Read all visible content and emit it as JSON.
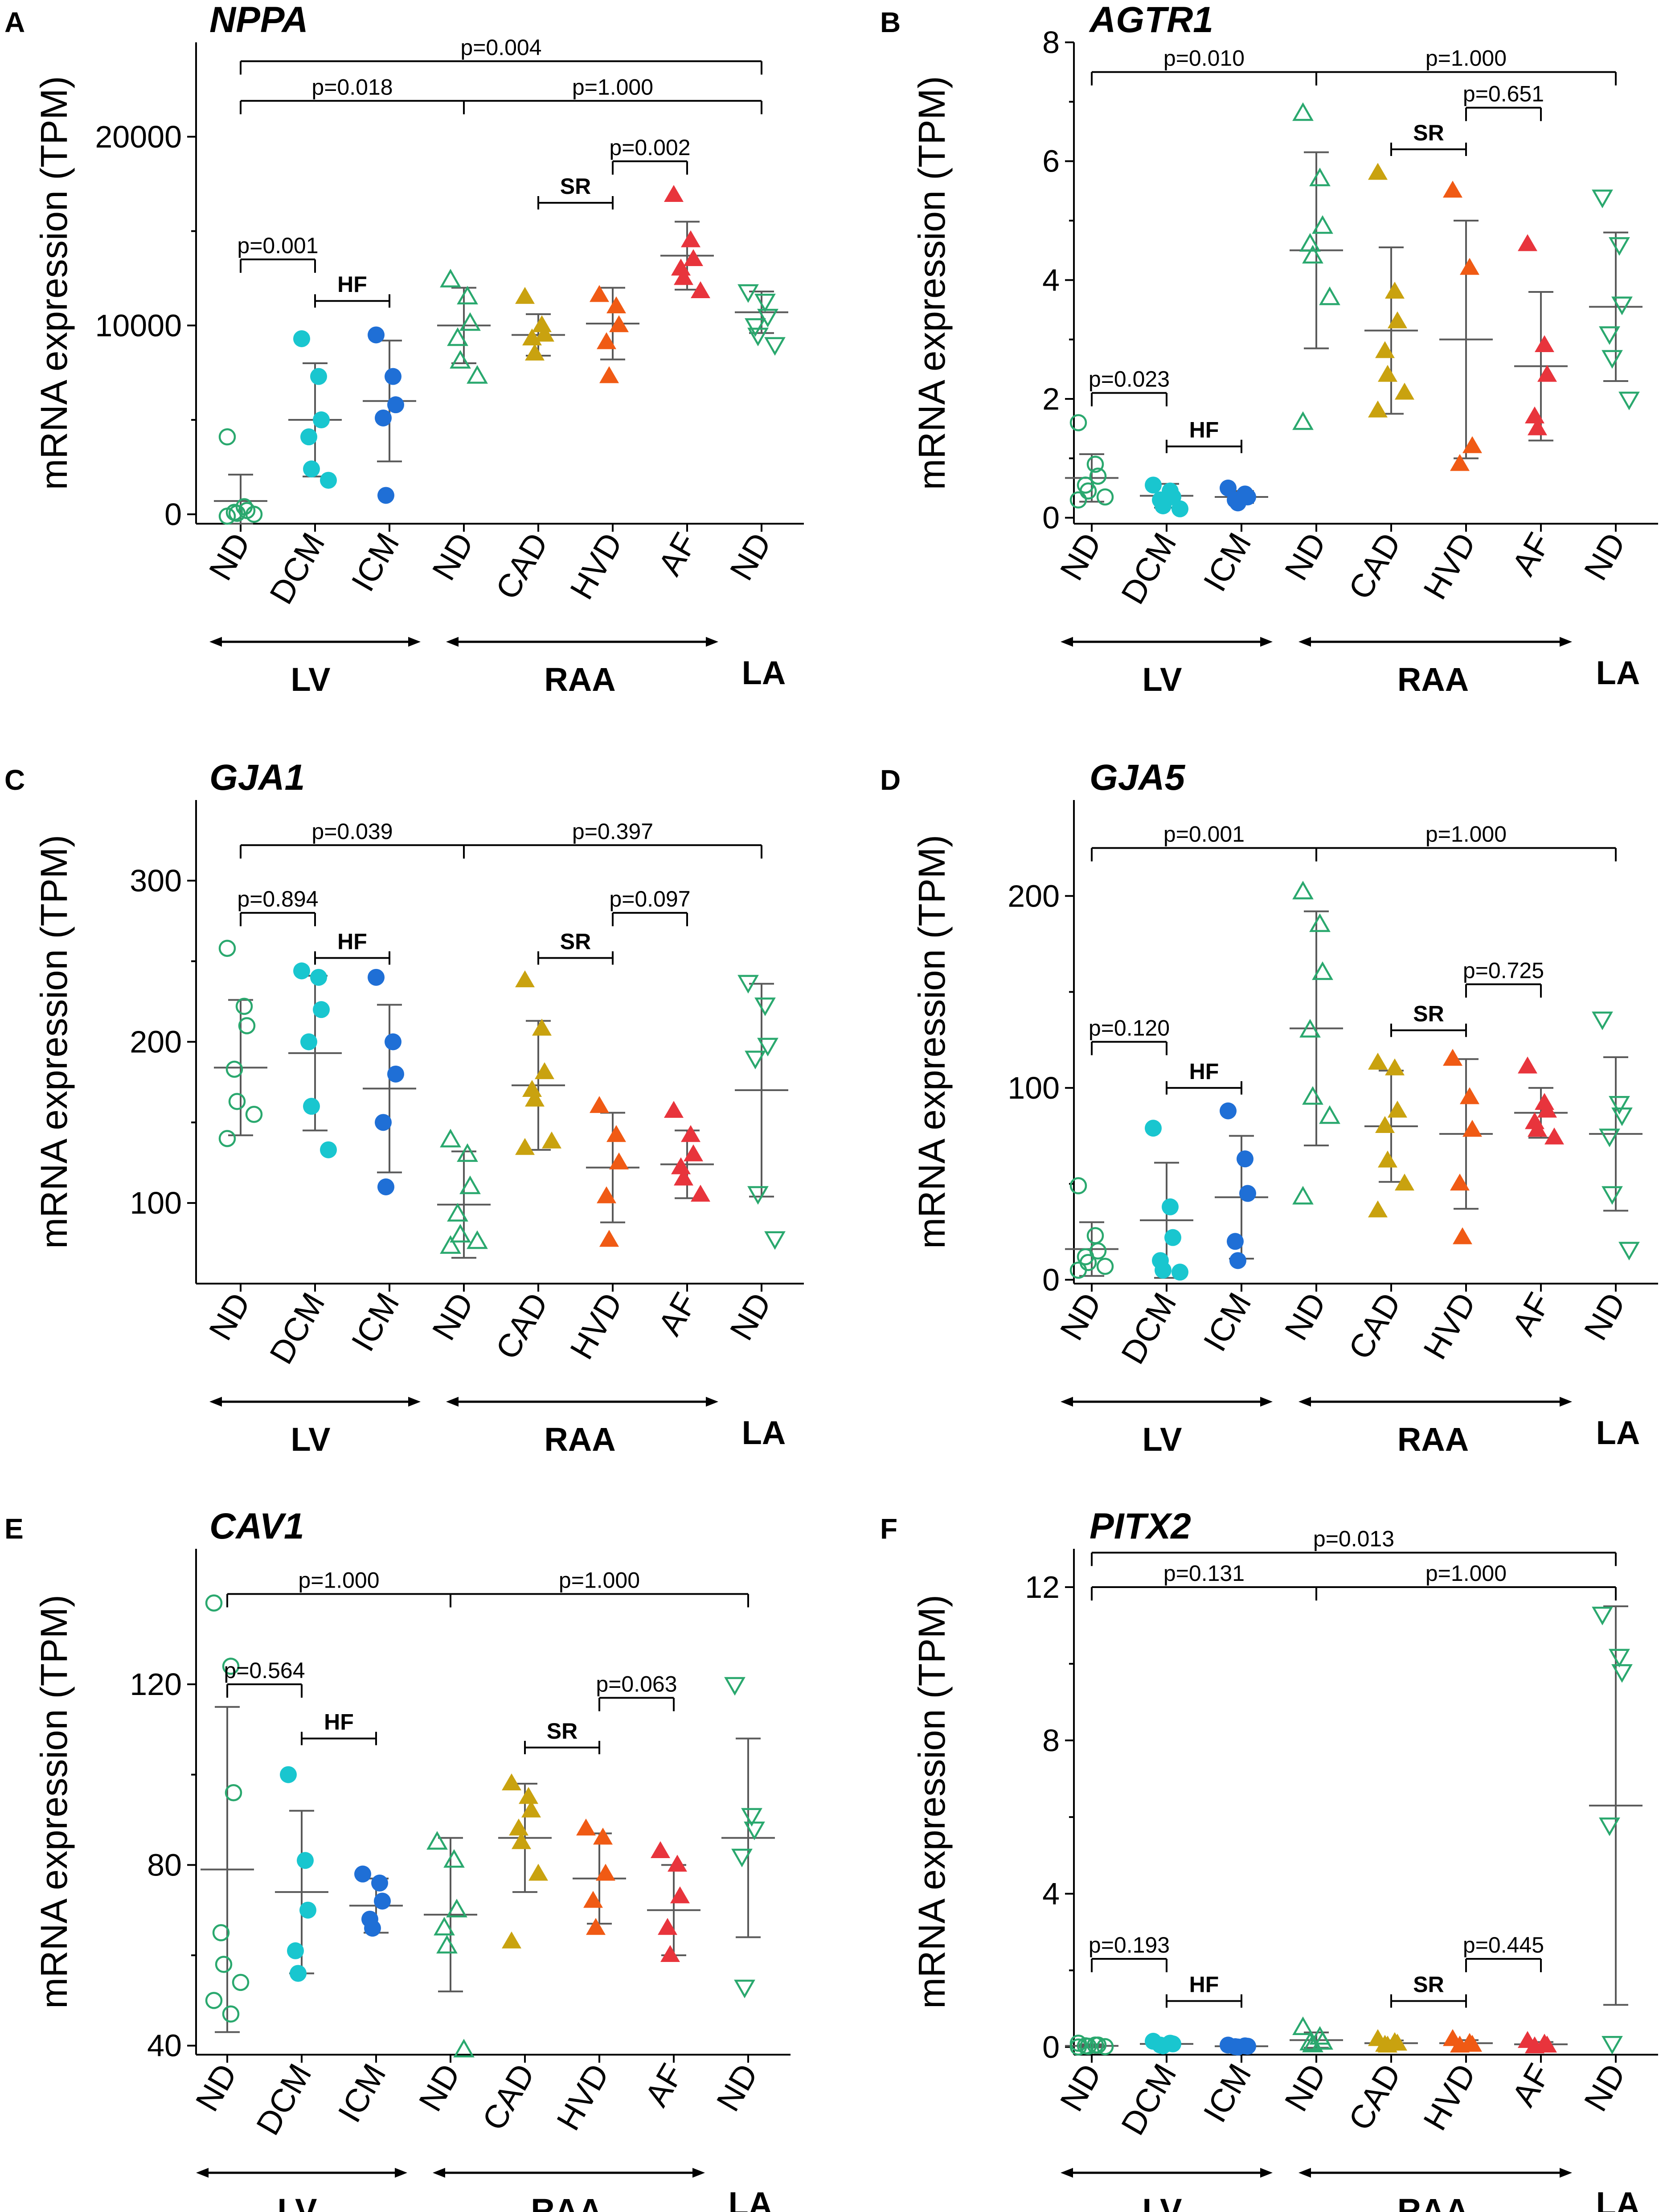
{
  "figure": {
    "background": "#ffffff"
  },
  "colors": {
    "ND_LV": "#2aa86e",
    "DCM": "#19c6cf",
    "ICM": "#1f6fd6",
    "ND_RAA": "#2aa86e",
    "CAD": "#c9a20f",
    "HVD": "#f05a14",
    "AF": "#e8343c",
    "ND_LA": "#2aa86e",
    "error_bar": "#5a5a5a"
  },
  "ylabel": "mRNA expression (TPM)",
  "categories": [
    "ND",
    "DCM",
    "ICM",
    "ND",
    "CAD",
    "HVD",
    "AF",
    "ND"
  ],
  "groups": [
    "ND_LV",
    "DCM",
    "ICM",
    "ND_RAA",
    "CAD",
    "HVD",
    "AF",
    "ND_LA"
  ],
  "regions": {
    "lv": "LV",
    "raa": "RAA",
    "la": "LA"
  },
  "chart_data": [
    {
      "type": "scatter",
      "panel": "A",
      "title": "NPPA",
      "ylabel": "mRNA expression (TPM)",
      "ylim": [
        -500,
        25000
      ],
      "yticks": [
        0,
        10000,
        20000
      ],
      "series": [
        {
          "name": "ND LV",
          "values": [
            4100,
            400,
            200,
            100,
            50,
            0,
            -100
          ],
          "mean": 700,
          "sd": 1400
        },
        {
          "name": "DCM",
          "values": [
            9300,
            7300,
            5000,
            4100,
            2400,
            1800
          ],
          "mean": 5000,
          "sd": 3000
        },
        {
          "name": "ICM",
          "values": [
            9500,
            7300,
            5800,
            5100,
            1000
          ],
          "mean": 6000,
          "sd": 3200
        },
        {
          "name": "ND RAA",
          "values": [
            12400,
            11500,
            10100,
            9300,
            8100,
            7300
          ],
          "mean": 10000,
          "sd": 2000
        },
        {
          "name": "CAD",
          "values": [
            11500,
            10000,
            9500,
            9300,
            8500
          ],
          "mean": 9500,
          "sd": 1100
        },
        {
          "name": "HVD",
          "values": [
            11600,
            11000,
            10000,
            9100,
            7300
          ],
          "mean": 10100,
          "sd": 1900
        },
        {
          "name": "AF",
          "values": [
            16900,
            14500,
            13500,
            13000,
            12500,
            11800
          ],
          "mean": 13700,
          "sd": 1800
        },
        {
          "name": "ND LA",
          "values": [
            11800,
            11300,
            10500,
            10000,
            9500,
            9000
          ],
          "mean": 10700,
          "sd": 1100
        }
      ],
      "brackets": [
        {
          "label": "p=0.004",
          "from": 0,
          "to": 7,
          "y": 24000
        },
        {
          "label": "p=0.018",
          "from": 0,
          "to": 3,
          "y": 21900
        },
        {
          "label": "p=1.000",
          "from": 3,
          "to": 7,
          "y": 21900
        },
        {
          "label": "p=0.002",
          "from": 5,
          "to": 6,
          "y": 18700
        },
        {
          "label": "p=0.001",
          "from": 0,
          "to": 1,
          "y": 13500
        },
        {
          "label": "HF",
          "from": 1,
          "to": 2,
          "y": 11300,
          "bold": true
        },
        {
          "label": "SR",
          "from": 4,
          "to": 5,
          "y": 16500,
          "bold": true
        }
      ]
    },
    {
      "type": "scatter",
      "panel": "B",
      "title": "AGTR1",
      "ylabel": "mRNA expression (TPM)",
      "ylim": [
        -0.1,
        8
      ],
      "yticks": [
        0,
        2,
        4,
        6,
        8
      ],
      "series": [
        {
          "name": "ND LV",
          "values": [
            1.6,
            0.9,
            0.7,
            0.55,
            0.45,
            0.35,
            0.3
          ],
          "mean": 0.67,
          "sd": 0.4
        },
        {
          "name": "DCM",
          "values": [
            0.55,
            0.45,
            0.35,
            0.3,
            0.2,
            0.15
          ],
          "mean": 0.37,
          "sd": 0.2
        },
        {
          "name": "ICM",
          "values": [
            0.5,
            0.4,
            0.35,
            0.3,
            0.25
          ],
          "mean": 0.35,
          "sd": 0.1
        },
        {
          "name": "ND RAA",
          "values": [
            6.8,
            5.7,
            4.9,
            4.6,
            4.4,
            3.7,
            1.6
          ],
          "mean": 4.5,
          "sd": 1.65
        },
        {
          "name": "CAD",
          "values": [
            5.8,
            3.8,
            3.3,
            2.8,
            2.4,
            2.1,
            1.8
          ],
          "mean": 3.15,
          "sd": 1.4
        },
        {
          "name": "HVD",
          "values": [
            5.5,
            4.2,
            1.2,
            0.9
          ],
          "mean": 3.0,
          "sd": 2.0
        },
        {
          "name": "AF",
          "values": [
            4.6,
            2.9,
            2.4,
            1.7,
            1.5
          ],
          "mean": 2.55,
          "sd": 1.25
        },
        {
          "name": "ND LA",
          "values": [
            5.4,
            4.6,
            3.6,
            3.1,
            2.7,
            2.0
          ],
          "mean": 3.55,
          "sd": 1.25
        }
      ],
      "brackets": [
        {
          "label": "p=0.010",
          "from": 0,
          "to": 3,
          "y": 7.5
        },
        {
          "label": "p=1.000",
          "from": 3,
          "to": 7,
          "y": 7.5
        },
        {
          "label": "p=0.651",
          "from": 5,
          "to": 6,
          "y": 6.9
        },
        {
          "label": "SR",
          "from": 4,
          "to": 5,
          "y": 6.2,
          "bold": true
        },
        {
          "label": "p=0.023",
          "from": 0,
          "to": 1,
          "y": 2.1
        },
        {
          "label": "HF",
          "from": 1,
          "to": 2,
          "y": 1.2,
          "bold": true
        }
      ]
    },
    {
      "type": "scatter",
      "panel": "C",
      "title": "GJA1",
      "ylabel": "mRNA expression (TPM)",
      "ylim": [
        50,
        350
      ],
      "yticks": [
        100,
        200,
        300
      ],
      "series": [
        {
          "name": "ND LV",
          "values": [
            258,
            222,
            210,
            183,
            163,
            155,
            140
          ],
          "mean": 184,
          "sd": 42
        },
        {
          "name": "DCM",
          "values": [
            244,
            240,
            220,
            200,
            160,
            133
          ],
          "mean": 193,
          "sd": 48
        },
        {
          "name": "ICM",
          "values": [
            240,
            200,
            180,
            150,
            110
          ],
          "mean": 171,
          "sd": 52
        },
        {
          "name": "ND RAA",
          "values": [
            139,
            130,
            110,
            93,
            80,
            76,
            73
          ],
          "mean": 99,
          "sd": 33
        },
        {
          "name": "CAD",
          "values": [
            238,
            208,
            181,
            170,
            164,
            138,
            134
          ],
          "mean": 173,
          "sd": 40
        },
        {
          "name": "HVD",
          "values": [
            160,
            142,
            125,
            104,
            77
          ],
          "mean": 122,
          "sd": 34
        },
        {
          "name": "AF",
          "values": [
            157,
            142,
            130,
            122,
            115,
            105
          ],
          "mean": 124,
          "sd": 21
        },
        {
          "name": "ND LA",
          "values": [
            237,
            223,
            198,
            190,
            106,
            78
          ],
          "mean": 170,
          "sd": 66
        }
      ],
      "brackets": [
        {
          "label": "p=0.039",
          "from": 0,
          "to": 3,
          "y": 322
        },
        {
          "label": "p=0.397",
          "from": 3,
          "to": 7,
          "y": 322
        },
        {
          "label": "p=0.894",
          "from": 0,
          "to": 1,
          "y": 280
        },
        {
          "label": "HF",
          "from": 1,
          "to": 2,
          "y": 252,
          "bold": true
        },
        {
          "label": "p=0.097",
          "from": 5,
          "to": 6,
          "y": 280
        },
        {
          "label": "SR",
          "from": 4,
          "to": 5,
          "y": 252,
          "bold": true
        }
      ]
    },
    {
      "type": "scatter",
      "panel": "D",
      "title": "GJA5",
      "ylabel": "mRNA expression (TPM)",
      "ylim": [
        -2,
        250
      ],
      "yticks": [
        0,
        100,
        200
      ],
      "series": [
        {
          "name": "ND LV",
          "values": [
            49,
            23,
            15,
            12,
            9,
            7,
            5
          ],
          "mean": 16,
          "sd": 14
        },
        {
          "name": "DCM",
          "values": [
            79,
            38,
            22,
            10,
            5,
            4
          ],
          "mean": 31,
          "sd": 30
        },
        {
          "name": "ICM",
          "values": [
            88,
            63,
            45,
            20,
            10
          ],
          "mean": 43,
          "sd": 32
        },
        {
          "name": "ND RAA",
          "values": [
            202,
            185,
            160,
            130,
            95,
            85,
            43
          ],
          "mean": 131,
          "sd": 61
        },
        {
          "name": "CAD",
          "values": [
            113,
            110,
            88,
            80,
            62,
            50,
            36
          ],
          "mean": 80,
          "sd": 29
        },
        {
          "name": "HVD",
          "values": [
            115,
            95,
            78,
            50,
            22
          ],
          "mean": 76,
          "sd": 39
        },
        {
          "name": "AF",
          "values": [
            111,
            92,
            88,
            82,
            78,
            74
          ],
          "mean": 87,
          "sd": 13
        },
        {
          "name": "ND LA",
          "values": [
            136,
            92,
            86,
            75,
            45,
            16
          ],
          "mean": 76,
          "sd": 40
        }
      ],
      "brackets": [
        {
          "label": "p=0.001",
          "from": 0,
          "to": 3,
          "y": 225
        },
        {
          "label": "p=1.000",
          "from": 3,
          "to": 7,
          "y": 225
        },
        {
          "label": "p=0.725",
          "from": 5,
          "to": 6,
          "y": 154
        },
        {
          "label": "SR",
          "from": 4,
          "to": 5,
          "y": 130,
          "bold": true
        },
        {
          "label": "p=0.120",
          "from": 0,
          "to": 1,
          "y": 124
        },
        {
          "label": "HF",
          "from": 1,
          "to": 2,
          "y": 100,
          "bold": true
        }
      ]
    },
    {
      "type": "scatter",
      "panel": "E",
      "title": "CAV1",
      "ylabel": "mRNA expression (TPM)",
      "ylim": [
        38,
        150
      ],
      "yticks": [
        40,
        80,
        120
      ],
      "series": [
        {
          "name": "ND LV",
          "values": [
            138,
            124,
            96,
            65,
            58,
            54,
            50,
            47
          ],
          "mean": 79,
          "sd": 36
        },
        {
          "name": "DCM",
          "values": [
            100,
            81,
            70,
            61,
            56
          ],
          "mean": 74,
          "sd": 18
        },
        {
          "name": "ICM",
          "values": [
            78,
            76,
            72,
            68,
            66
          ],
          "mean": 71,
          "sd": 6
        },
        {
          "name": "ND RAA",
          "values": [
            85,
            81,
            70,
            66,
            62,
            39
          ],
          "mean": 69,
          "sd": 17
        },
        {
          "name": "CAD",
          "values": [
            98,
            95,
            92,
            88,
            85,
            78,
            63
          ],
          "mean": 86,
          "sd": 12
        },
        {
          "name": "HVD",
          "values": [
            88,
            86,
            78,
            72,
            66
          ],
          "mean": 77,
          "sd": 10
        },
        {
          "name": "AF",
          "values": [
            83,
            80,
            73,
            66,
            60
          ],
          "mean": 70,
          "sd": 10
        },
        {
          "name": "ND LA",
          "values": [
            120,
            91,
            88,
            82,
            53
          ],
          "mean": 86,
          "sd": 22
        }
      ],
      "brackets": [
        {
          "label": "p=1.000",
          "from": 0,
          "to": 3,
          "y": 140
        },
        {
          "label": "p=1.000",
          "from": 3,
          "to": 7,
          "y": 140
        },
        {
          "label": "p=0.564",
          "from": 0,
          "to": 1,
          "y": 120
        },
        {
          "label": "HF",
          "from": 1,
          "to": 2,
          "y": 108,
          "bold": true
        },
        {
          "label": "p=0.063",
          "from": 5,
          "to": 6,
          "y": 117
        },
        {
          "label": "SR",
          "from": 4,
          "to": 5,
          "y": 106,
          "bold": true
        }
      ]
    },
    {
      "type": "scatter",
      "panel": "F",
      "title": "PITX2",
      "ylabel": "mRNA expression (TPM)",
      "ylim": [
        -0.2,
        13
      ],
      "yticks": [
        0,
        4,
        8,
        12
      ],
      "series": [
        {
          "name": "ND LV",
          "values": [
            0.1,
            0.05,
            0.05,
            0.03,
            0.02,
            0.01,
            0.0
          ],
          "mean": 0.03,
          "sd": 0.04
        },
        {
          "name": "DCM",
          "values": [
            0.15,
            0.1,
            0.08,
            0.05,
            0.03
          ],
          "mean": 0.08,
          "sd": 0.05
        },
        {
          "name": "ICM",
          "values": [
            0.05,
            0.03,
            0.02,
            0.01,
            0.0
          ],
          "mean": 0.02,
          "sd": 0.02
        },
        {
          "name": "ND RAA",
          "values": [
            0.5,
            0.25,
            0.12,
            0.1,
            0.05
          ],
          "mean": 0.18,
          "sd": 0.2
        },
        {
          "name": "CAD",
          "values": [
            0.2,
            0.12,
            0.08,
            0.05,
            0.03
          ],
          "mean": 0.1,
          "sd": 0.07
        },
        {
          "name": "HVD",
          "values": [
            0.2,
            0.1,
            0.05,
            0.03
          ],
          "mean": 0.1,
          "sd": 0.08
        },
        {
          "name": "AF",
          "values": [
            0.15,
            0.08,
            0.03,
            0.01
          ],
          "mean": 0.07,
          "sd": 0.06
        },
        {
          "name": "ND LA",
          "values": [
            11.3,
            10.2,
            9.8,
            5.8,
            0.1
          ],
          "mean": 6.3,
          "sd": 5.2
        }
      ],
      "brackets": [
        {
          "label": "p=0.013",
          "from": 0,
          "to": 7,
          "y": 12.9
        },
        {
          "label": "p=0.131",
          "from": 0,
          "to": 3,
          "y": 12.0
        },
        {
          "label": "p=1.000",
          "from": 3,
          "to": 7,
          "y": 12.0
        },
        {
          "label": "p=0.193",
          "from": 0,
          "to": 1,
          "y": 2.3
        },
        {
          "label": "HF",
          "from": 1,
          "to": 2,
          "y": 1.2,
          "bold": true
        },
        {
          "label": "p=0.445",
          "from": 5,
          "to": 6,
          "y": 2.3
        },
        {
          "label": "SR",
          "from": 4,
          "to": 5,
          "y": 1.2,
          "bold": true
        }
      ]
    }
  ]
}
